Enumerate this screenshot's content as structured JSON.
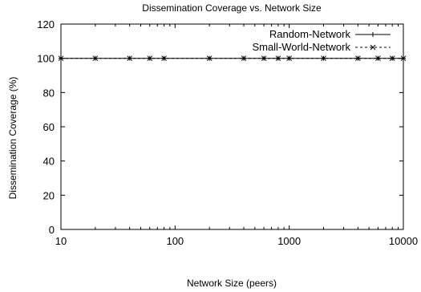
{
  "chart_data": {
    "type": "line",
    "title": "Dissemination Coverage vs. Network Size",
    "xlabel": "Network Size (peers)",
    "ylabel": "Dissemination Coverage (%)",
    "x_scale": "log",
    "xlim": [
      10,
      10000
    ],
    "ylim": [
      0,
      120
    ],
    "x_ticks": [
      10,
      100,
      1000,
      10000
    ],
    "x_tick_labels": [
      "10",
      "100",
      "1000",
      "10000"
    ],
    "y_ticks": [
      0,
      20,
      40,
      60,
      80,
      100,
      120
    ],
    "y_tick_labels": [
      "0",
      "20",
      "40",
      "60",
      "80",
      "100",
      "120"
    ],
    "grid": false,
    "legend_position": "top-right",
    "series": [
      {
        "name": "Random-Network",
        "line_style": "solid",
        "marker": "plus",
        "color": "#000000",
        "x": [
          10,
          20,
          40,
          60,
          80,
          200,
          400,
          600,
          800,
          1000,
          2000,
          4000,
          6000,
          8000,
          10000
        ],
        "y": [
          100,
          100,
          100,
          100,
          100,
          100,
          100,
          100,
          100,
          100,
          100,
          100,
          100,
          100,
          100
        ]
      },
      {
        "name": "Small-World-Network",
        "line_style": "dashed",
        "marker": "x",
        "color": "#000000",
        "x": [
          10,
          20,
          40,
          60,
          80,
          200,
          400,
          600,
          800,
          1000,
          2000,
          4000,
          6000,
          8000,
          10000
        ],
        "y": [
          100,
          100,
          100,
          100,
          100,
          100,
          100,
          100,
          100,
          100,
          100,
          100,
          100,
          100,
          100
        ]
      }
    ]
  }
}
